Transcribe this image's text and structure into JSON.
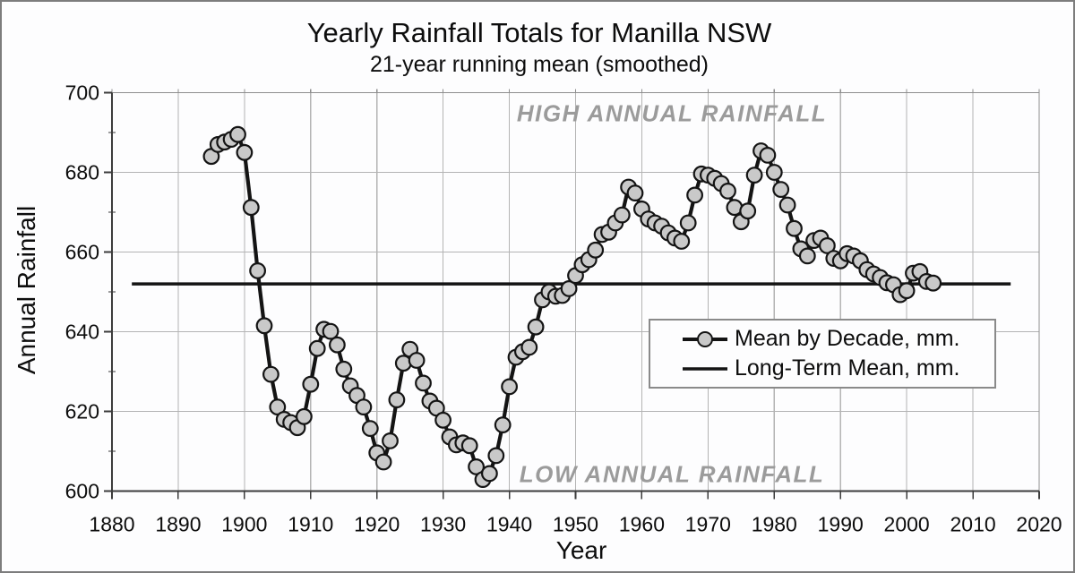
{
  "window": {
    "border_color": "#7d7d7d",
    "background": "#fdfdfe"
  },
  "chart_data": {
    "type": "line",
    "title": "Yearly Rainfall Totals for Manilla NSW",
    "subtitle": "21-year running mean (smoothed)",
    "xlabel": "Year",
    "ylabel": "Annual Rainfall",
    "xlim": [
      1880,
      2020
    ],
    "ylim": [
      600,
      700
    ],
    "x_ticks": [
      1880,
      1890,
      1900,
      1910,
      1920,
      1930,
      1940,
      1950,
      1960,
      1970,
      1980,
      1990,
      2000,
      2010,
      2020
    ],
    "y_ticks": [
      600,
      620,
      640,
      660,
      680,
      700
    ],
    "y_minor_ticks": [
      610,
      630,
      650,
      670,
      690
    ],
    "grid": {
      "x": [
        1890,
        1900,
        1910,
        1920,
        1930,
        1940,
        1950,
        1960,
        1970,
        1980,
        1990,
        2000,
        2010
      ],
      "y": [
        620,
        640,
        660,
        680
      ]
    },
    "legend_position": "inside-lower-right",
    "colors": {
      "series_line": "#141414",
      "marker_fill": "#c9c9c9",
      "marker_stroke": "#141414",
      "mean_line": "#141414",
      "grid": "#b4b4b4",
      "frame": "#8e8e8e",
      "axis": "#3c3c3c",
      "annotation": "#9b9b9b"
    },
    "series": [
      {
        "name": "Mean by Decade, mm.",
        "type": "line+marker",
        "years": [
          1895,
          1896,
          1897,
          1898,
          1899,
          1900,
          1901,
          1902,
          1903,
          1904,
          1905,
          1906,
          1907,
          1908,
          1909,
          1910,
          1911,
          1912,
          1913,
          1914,
          1915,
          1916,
          1917,
          1918,
          1919,
          1920,
          1921,
          1922,
          1923,
          1924,
          1925,
          1926,
          1927,
          1928,
          1929,
          1930,
          1931,
          1932,
          1933,
          1934,
          1935,
          1936,
          1937,
          1938,
          1939,
          1940,
          1941,
          1942,
          1943,
          1944,
          1945,
          1946,
          1947,
          1948,
          1949,
          1950,
          1951,
          1952,
          1953,
          1954,
          1955,
          1956,
          1957,
          1958,
          1959,
          1960,
          1961,
          1962,
          1963,
          1964,
          1965,
          1966,
          1967,
          1968,
          1969,
          1970,
          1971,
          1972,
          1973,
          1974,
          1975,
          1976,
          1977,
          1978,
          1979,
          1980,
          1981,
          1982,
          1983,
          1984,
          1985,
          1986,
          1987,
          1988,
          1989,
          1990,
          1991,
          1992,
          1993,
          1994,
          1995,
          1996,
          1997,
          1998,
          1999,
          2000,
          2001,
          2002,
          2003,
          2004
        ],
        "values": [
          684,
          687,
          687.6,
          688.3,
          689.5,
          685,
          671.2,
          655.3,
          641.5,
          629.3,
          621.1,
          618,
          617.2,
          615.9,
          618.7,
          626.8,
          635.8,
          640.6,
          640.1,
          636.7,
          630.6,
          626.4,
          624,
          621.1,
          615.7,
          609.6,
          607.3,
          612.6,
          622.9,
          632.1,
          635.6,
          632.8,
          627.1,
          622.6,
          620.8,
          617.8,
          613.6,
          611.6,
          612.1,
          611.4,
          606.1,
          602.9,
          604.4,
          608.9,
          616.6,
          626.2,
          633.6,
          635,
          636.1,
          641.2,
          648,
          650,
          648.9,
          649.1,
          650.8,
          654.1,
          656.8,
          658.1,
          660.5,
          664.4,
          665,
          667.3,
          669.3,
          676.3,
          674.8,
          670.8,
          668.3,
          667.3,
          666.5,
          664.8,
          663.5,
          662.7,
          667.3,
          674.3,
          679.6,
          679.3,
          678.5,
          677.2,
          675.3,
          671.2,
          667.6,
          670.3,
          679.3,
          685.4,
          684.3,
          680,
          675.7,
          671.8,
          665.9,
          660.8,
          659,
          662.9,
          663.5,
          661.6,
          658.4,
          657.8,
          659.6,
          659,
          657.8,
          655.6,
          654.5,
          653.6,
          652.3,
          651.8,
          649.3,
          650.3,
          654.7,
          655.1,
          652.6,
          652.2
        ]
      },
      {
        "name": "Long-Term Mean, mm.",
        "type": "hline",
        "value": 652,
        "x_span": [
          1883,
          2015.7
        ]
      }
    ],
    "annotations": [
      {
        "text": "HIGH ANNUAL RAINFALL",
        "x": 1964.5,
        "y": 694.7
      },
      {
        "text": "LOW ANNUAL RAINFALL",
        "x": 1964.5,
        "y": 604.2
      }
    ]
  }
}
